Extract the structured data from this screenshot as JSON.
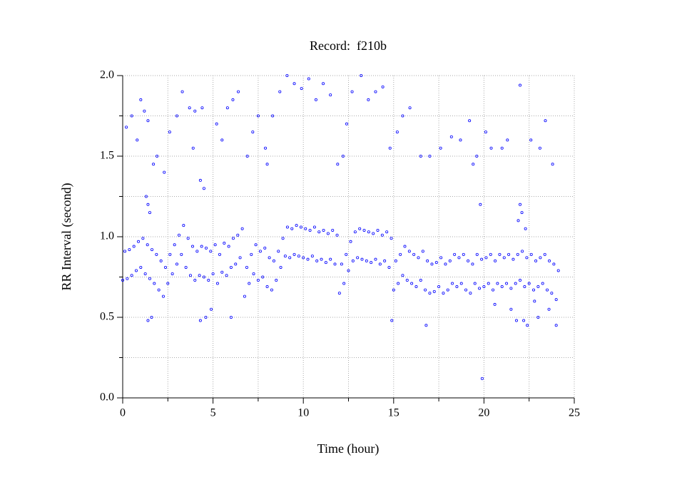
{
  "chart_data": {
    "type": "scatter",
    "title": "Record:  f210b",
    "x_label": "Time (hour)",
    "y_label": "RR Interval (second)",
    "color": "#0000ff",
    "grid": true,
    "xlim": [
      0,
      25
    ],
    "ylim": [
      0,
      2
    ],
    "xticks": [
      0,
      5,
      10,
      15,
      20,
      25
    ],
    "minor_xticks": [
      2.5,
      7.5,
      12.5,
      17.5,
      22.5
    ],
    "yticks": [
      {
        "value": 0,
        "label": "0.0"
      },
      0.5,
      {
        "value": 1,
        "label": "1.0"
      },
      1.5,
      {
        "value": 2,
        "label": "2.0"
      }
    ],
    "minor_yticks": [
      0.25,
      0.75,
      1.25,
      1.75
    ],
    "x": [
      0,
      0.12,
      0.25,
      0.37,
      0.5,
      0.62,
      0.75,
      0.87,
      1,
      1.12,
      1.25,
      1.37,
      1.5,
      1.62,
      1.75,
      1.87,
      2,
      2.12,
      2.25,
      2.37,
      2.5,
      2.62,
      2.75,
      2.87,
      3,
      3.12,
      3.25,
      3.37,
      3.5,
      3.62,
      3.75,
      3.87,
      4,
      4.12,
      4.25,
      4.37,
      4.5,
      4.62,
      4.75,
      4.87,
      5,
      5.12,
      5.25,
      5.37,
      5.5,
      5.62,
      5.75,
      5.87,
      6,
      6.12,
      6.25,
      6.37,
      6.5,
      6.62,
      6.75,
      6.87,
      7,
      7.12,
      7.25,
      7.37,
      7.5,
      7.62,
      7.75,
      7.87,
      8,
      8.12,
      8.25,
      8.37,
      8.5,
      8.62,
      8.75,
      8.87,
      9,
      9.12,
      9.25,
      9.37,
      9.5,
      9.62,
      9.75,
      9.87,
      10,
      10.12,
      10.25,
      10.37,
      10.5,
      10.62,
      10.75,
      10.87,
      11,
      11.12,
      11.25,
      11.37,
      11.5,
      11.62,
      11.75,
      11.87,
      12,
      12.12,
      12.25,
      12.37,
      12.5,
      12.62,
      12.75,
      12.87,
      13,
      13.12,
      13.25,
      13.37,
      13.5,
      13.62,
      13.75,
      13.87,
      14,
      14.12,
      14.25,
      14.37,
      14.5,
      14.62,
      14.75,
      14.87,
      15,
      15.12,
      15.25,
      15.37,
      15.5,
      15.62,
      15.75,
      15.87,
      16,
      16.12,
      16.25,
      16.37,
      16.5,
      16.62,
      16.75,
      16.87,
      17,
      17.12,
      17.25,
      17.37,
      17.5,
      17.62,
      17.75,
      17.87,
      18,
      18.12,
      18.25,
      18.37,
      18.5,
      18.62,
      18.75,
      18.87,
      19,
      19.12,
      19.25,
      19.37,
      19.5,
      19.62,
      19.75,
      19.87,
      20,
      20.12,
      20.25,
      20.37,
      20.5,
      20.62,
      20.75,
      20.87,
      21,
      21.12,
      21.25,
      21.37,
      21.5,
      21.62,
      21.75,
      21.87,
      22,
      22.12,
      22.25,
      22.37,
      22.5,
      22.62,
      22.75,
      22.87,
      23,
      23.12,
      23.25,
      23.37,
      23.5,
      23.62,
      23.75,
      23.87,
      24,
      24.12,
      0.2,
      0.5,
      0.8,
      1.0,
      1.2,
      1.4,
      1.7,
      1.9,
      1.3,
      1.4,
      1.5,
      1.4,
      1.6,
      2.3,
      2.6,
      3.0,
      3.3,
      3.7,
      4.0,
      3.9,
      4.3,
      4.5,
      4.4,
      4.3,
      4.6,
      4.9,
      5.2,
      5.5,
      5.8,
      6.1,
      6.4,
      6.0,
      6.9,
      7.2,
      7.5,
      7.9,
      8.0,
      8.3,
      8.7,
      9.1,
      9.5,
      9.9,
      10.3,
      10.7,
      11.1,
      11.5,
      11.9,
      12.2,
      12.4,
      12.7,
      13.2,
      13.6,
      14.0,
      14.4,
      14.8,
      15.2,
      15.5,
      15.9,
      14.9,
      16.5,
      17.0,
      16.8,
      17.6,
      18.2,
      18.7,
      19.2,
      19.6,
      19.4,
      19.8,
      19.9,
      20.1,
      20.4,
      20.6,
      21.0,
      21.3,
      21.5,
      21.8,
      22.0,
      22.0,
      22.1,
      22.3,
      21.9,
      22.4,
      22.6,
      22.8,
      23.1,
      23.4,
      23.6,
      23.8,
      24.0,
      22.2,
      23.0
    ],
    "values": [
      0.73,
      0.91,
      0.74,
      0.92,
      0.76,
      0.94,
      0.79,
      0.97,
      0.81,
      0.99,
      0.77,
      0.95,
      0.74,
      0.92,
      0.71,
      0.89,
      0.67,
      0.85,
      0.63,
      0.81,
      0.71,
      0.89,
      0.77,
      0.95,
      0.83,
      1.01,
      0.89,
      1.07,
      0.81,
      0.99,
      0.76,
      0.94,
      0.73,
      0.91,
      0.76,
      0.94,
      0.75,
      0.93,
      0.73,
      0.91,
      0.77,
      0.95,
      0.71,
      0.89,
      0.78,
      0.96,
      0.76,
      0.94,
      0.81,
      0.99,
      0.83,
      1.01,
      0.87,
      1.05,
      0.63,
      0.81,
      0.71,
      0.89,
      0.77,
      0.95,
      0.73,
      0.91,
      0.75,
      0.93,
      0.69,
      0.87,
      0.67,
      0.85,
      0.73,
      0.91,
      0.81,
      0.99,
      0.88,
      1.06,
      0.87,
      1.05,
      0.89,
      1.07,
      0.88,
      1.06,
      0.87,
      1.05,
      0.86,
      1.04,
      0.88,
      1.06,
      0.85,
      1.03,
      0.86,
      1.04,
      0.84,
      1.02,
      0.86,
      1.04,
      0.83,
      1.01,
      0.65,
      0.83,
      0.71,
      0.89,
      0.79,
      0.97,
      0.85,
      1.03,
      0.87,
      1.05,
      0.86,
      1.04,
      0.85,
      1.03,
      0.84,
      1.02,
      0.86,
      1.04,
      0.83,
      1.01,
      0.85,
      1.03,
      0.81,
      0.99,
      0.67,
      0.85,
      0.71,
      0.89,
      0.76,
      0.94,
      0.73,
      0.91,
      0.71,
      0.89,
      0.69,
      0.87,
      0.73,
      0.91,
      0.67,
      0.85,
      0.65,
      0.83,
      0.66,
      0.84,
      0.69,
      0.87,
      0.65,
      0.83,
      0.67,
      0.85,
      0.71,
      0.89,
      0.69,
      0.87,
      0.71,
      0.89,
      0.67,
      0.85,
      0.65,
      0.83,
      0.71,
      0.89,
      0.68,
      0.86,
      0.69,
      0.87,
      0.71,
      0.89,
      0.67,
      0.85,
      0.71,
      0.89,
      0.69,
      0.87,
      0.71,
      0.89,
      0.68,
      0.86,
      0.71,
      0.89,
      0.73,
      0.91,
      0.69,
      0.87,
      0.71,
      0.89,
      0.67,
      0.85,
      0.69,
      0.87,
      0.71,
      0.89,
      0.67,
      0.85,
      0.65,
      0.83,
      0.61,
      0.79,
      1.68,
      1.75,
      1.6,
      1.85,
      1.78,
      1.72,
      1.45,
      1.5,
      1.25,
      1.2,
      1.15,
      0.48,
      0.5,
      1.4,
      1.65,
      1.75,
      1.9,
      1.8,
      1.78,
      1.55,
      1.35,
      1.3,
      1.8,
      0.48,
      0.5,
      0.55,
      1.7,
      1.6,
      1.8,
      1.85,
      1.9,
      0.5,
      1.5,
      1.65,
      1.75,
      1.55,
      1.45,
      1.75,
      1.9,
      2.0,
      1.95,
      1.92,
      1.98,
      1.85,
      1.95,
      1.88,
      1.45,
      1.5,
      1.7,
      1.9,
      2.0,
      1.85,
      1.9,
      1.93,
      1.55,
      1.65,
      1.75,
      1.8,
      0.48,
      1.5,
      1.5,
      0.45,
      1.55,
      1.62,
      1.6,
      1.72,
      1.5,
      1.45,
      1.2,
      0.12,
      1.65,
      1.55,
      0.58,
      1.55,
      1.6,
      0.55,
      0.48,
      1.94,
      1.2,
      1.15,
      1.05,
      1.1,
      0.45,
      1.6,
      0.6,
      1.55,
      1.72,
      0.55,
      1.45,
      0.45,
      0.48,
      0.5
    ]
  }
}
